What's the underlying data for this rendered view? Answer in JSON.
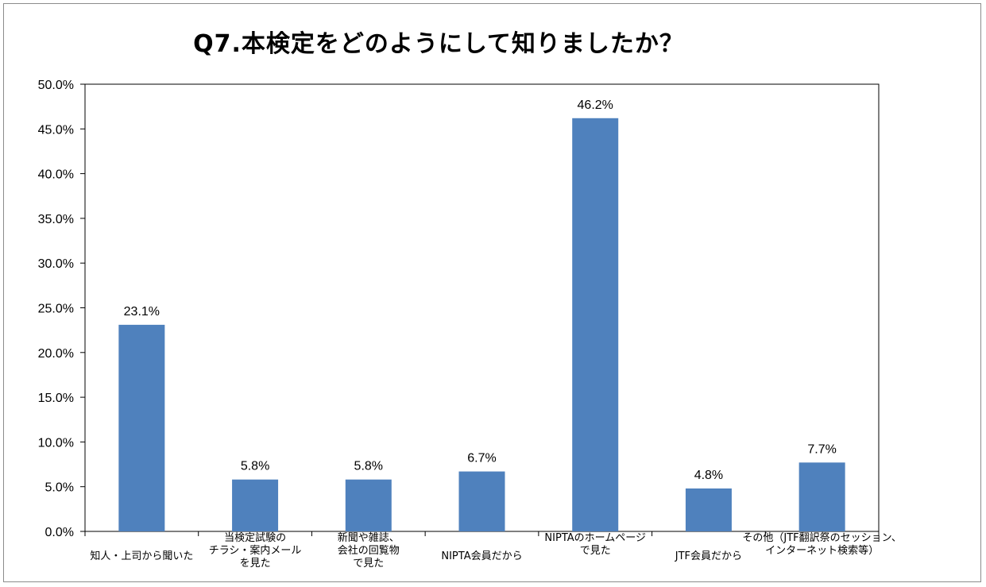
{
  "chart_data": {
    "type": "bar",
    "title": "Q7.本検定をどのようにして知りましたか？",
    "xlabel": "",
    "ylabel": "",
    "ylim": [
      0,
      50
    ],
    "y_ticks": [
      "0.0%",
      "5.0%",
      "10.0%",
      "15.0%",
      "20.0%",
      "25.0%",
      "30.0%",
      "35.0%",
      "40.0%",
      "45.0%",
      "50.0%"
    ],
    "grid": false,
    "legend": "none",
    "bar_color": "#4f81bd",
    "categories": [
      [
        "知人・上司から聞いた"
      ],
      [
        "当検定試験の",
        "チラシ・案内メール",
        "を見た"
      ],
      [
        "新聞や雑誌、",
        "会社の回覧物",
        "で見た"
      ],
      [
        "NIPTA会員だから"
      ],
      [
        "NIPTAのホームページ",
        "で見た"
      ],
      [
        "JTF会員だから"
      ],
      [
        "その他（JTF翻訳祭のセッション、",
        "インターネット検索等）"
      ]
    ],
    "values": [
      23.1,
      5.8,
      5.8,
      6.7,
      46.2,
      4.8,
      7.7
    ],
    "data_labels": [
      "23.1%",
      "5.8%",
      "5.8%",
      "6.7%",
      "46.2%",
      "4.8%",
      "7.7%"
    ]
  }
}
